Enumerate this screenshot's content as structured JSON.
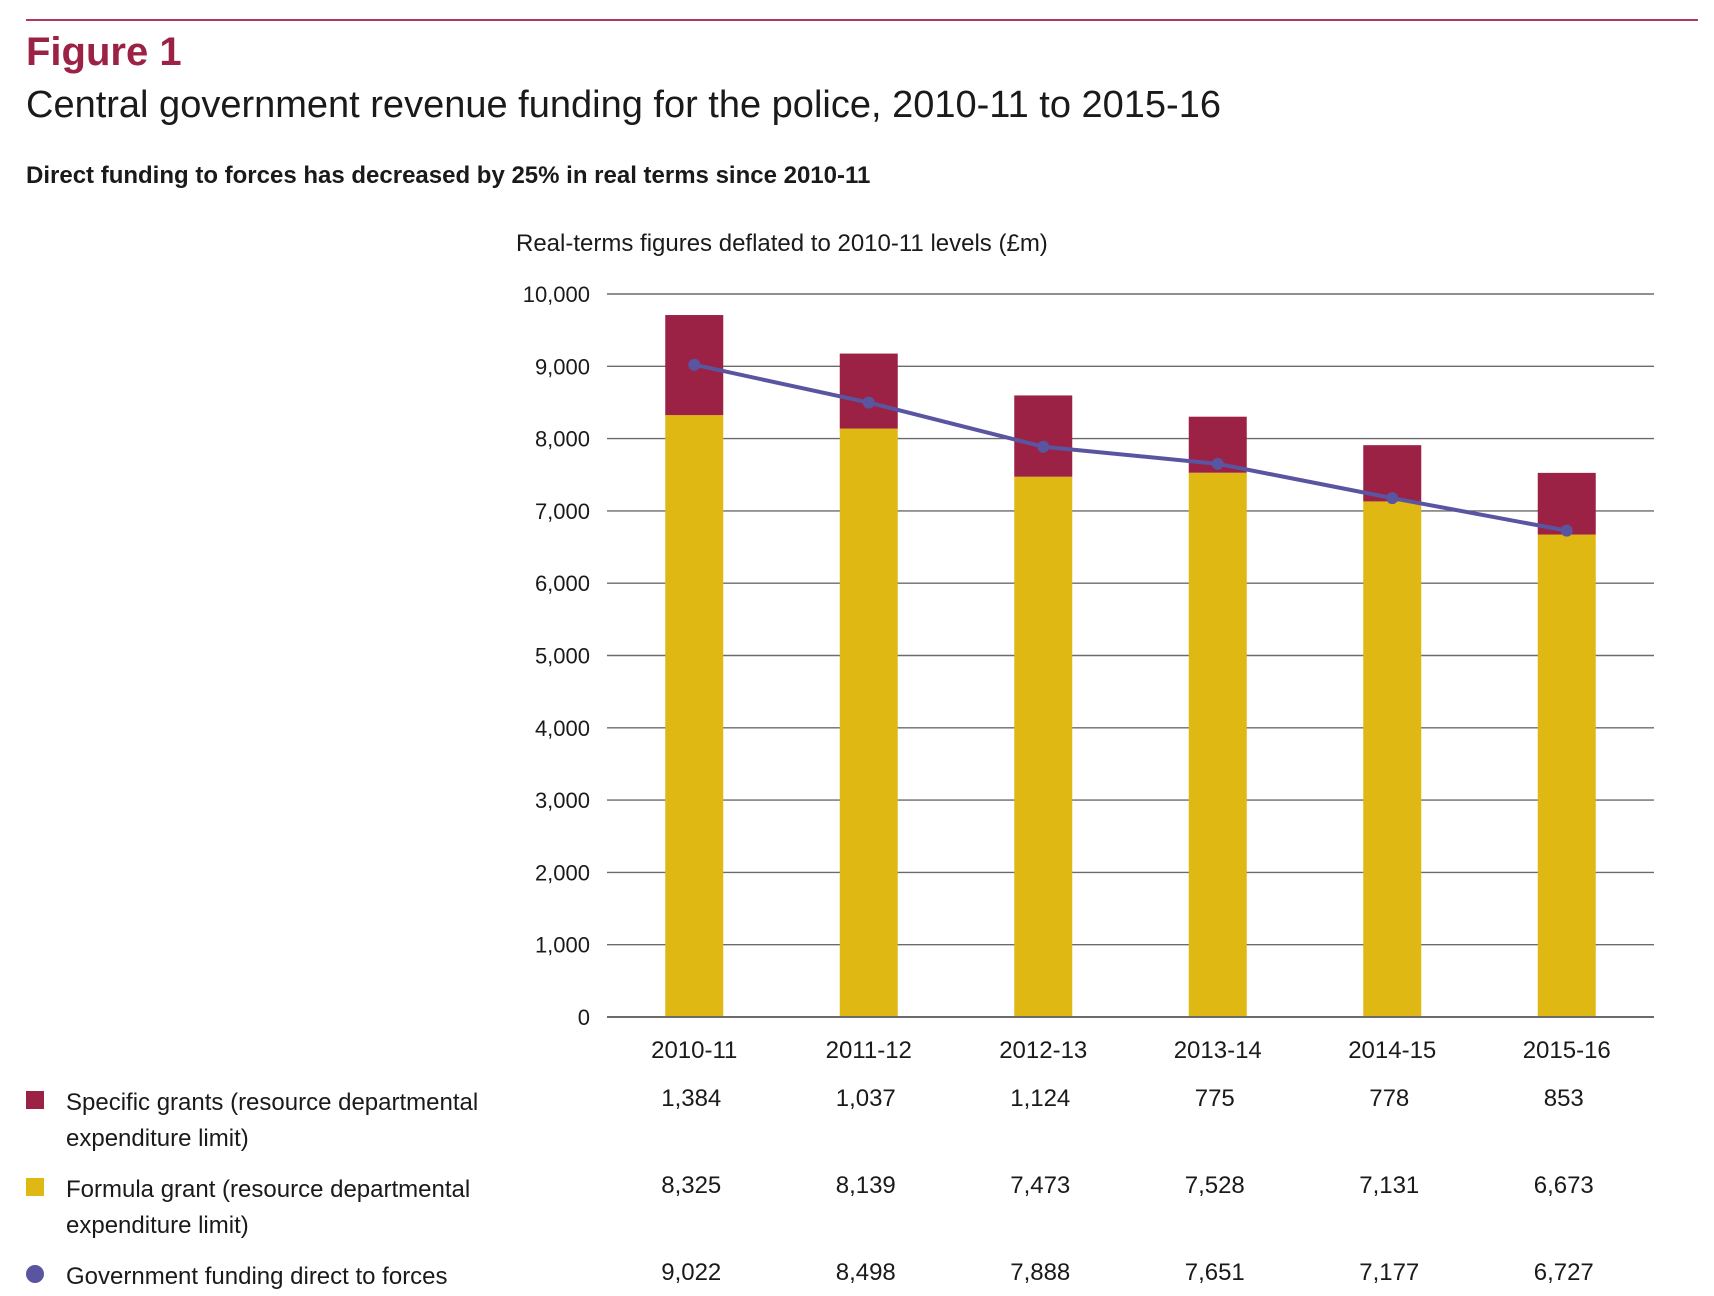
{
  "figure_label": "Figure 1",
  "title": "Central government revenue funding for the police, 2010-11 to 2015-16",
  "subtitle": "Direct funding to forces has decreased by 25% in real terms since 2010-11",
  "colors": {
    "specific": "#9b2145",
    "formula": "#dfb814",
    "line": "#5a55a0",
    "grid": "#6b6b6b",
    "rule": "#b03a5b"
  },
  "chart_data": {
    "type": "bar",
    "stacked": true,
    "ylabel": "Real-terms figures deflated to 2010-11 levels (£m)",
    "ylim": [
      0,
      10000
    ],
    "yticks": [
      0,
      1000,
      2000,
      3000,
      4000,
      5000,
      6000,
      7000,
      8000,
      9000,
      10000
    ],
    "ytick_labels": [
      "0",
      "1,000",
      "2,000",
      "3,000",
      "4,000",
      "5,000",
      "6,000",
      "7,000",
      "8,000",
      "9,000",
      "10,000"
    ],
    "grid": true,
    "categories": [
      "2010-11",
      "2011-12",
      "2012-13",
      "2013-14",
      "2014-15",
      "2015-16"
    ],
    "series": [
      {
        "name": "Specific grants (resource departmental expenditure limit)",
        "kind": "bar",
        "values": [
          1384,
          1037,
          1124,
          775,
          778,
          853
        ],
        "labels": [
          "1,384",
          "1,037",
          "1,124",
          "775",
          "778",
          "853"
        ]
      },
      {
        "name": "Formula grant (resource departmental expenditure limit)",
        "kind": "bar",
        "values": [
          8325,
          8139,
          7473,
          7528,
          7131,
          6673
        ],
        "labels": [
          "8,325",
          "8,139",
          "7,473",
          "7,528",
          "7,131",
          "6,673"
        ]
      },
      {
        "name": "Government funding direct to forces",
        "kind": "line",
        "values": [
          9022,
          8498,
          7888,
          7651,
          7177,
          6727
        ],
        "labels": [
          "9,022",
          "8,498",
          "7,888",
          "7,651",
          "7,177",
          "6,727"
        ]
      }
    ]
  }
}
